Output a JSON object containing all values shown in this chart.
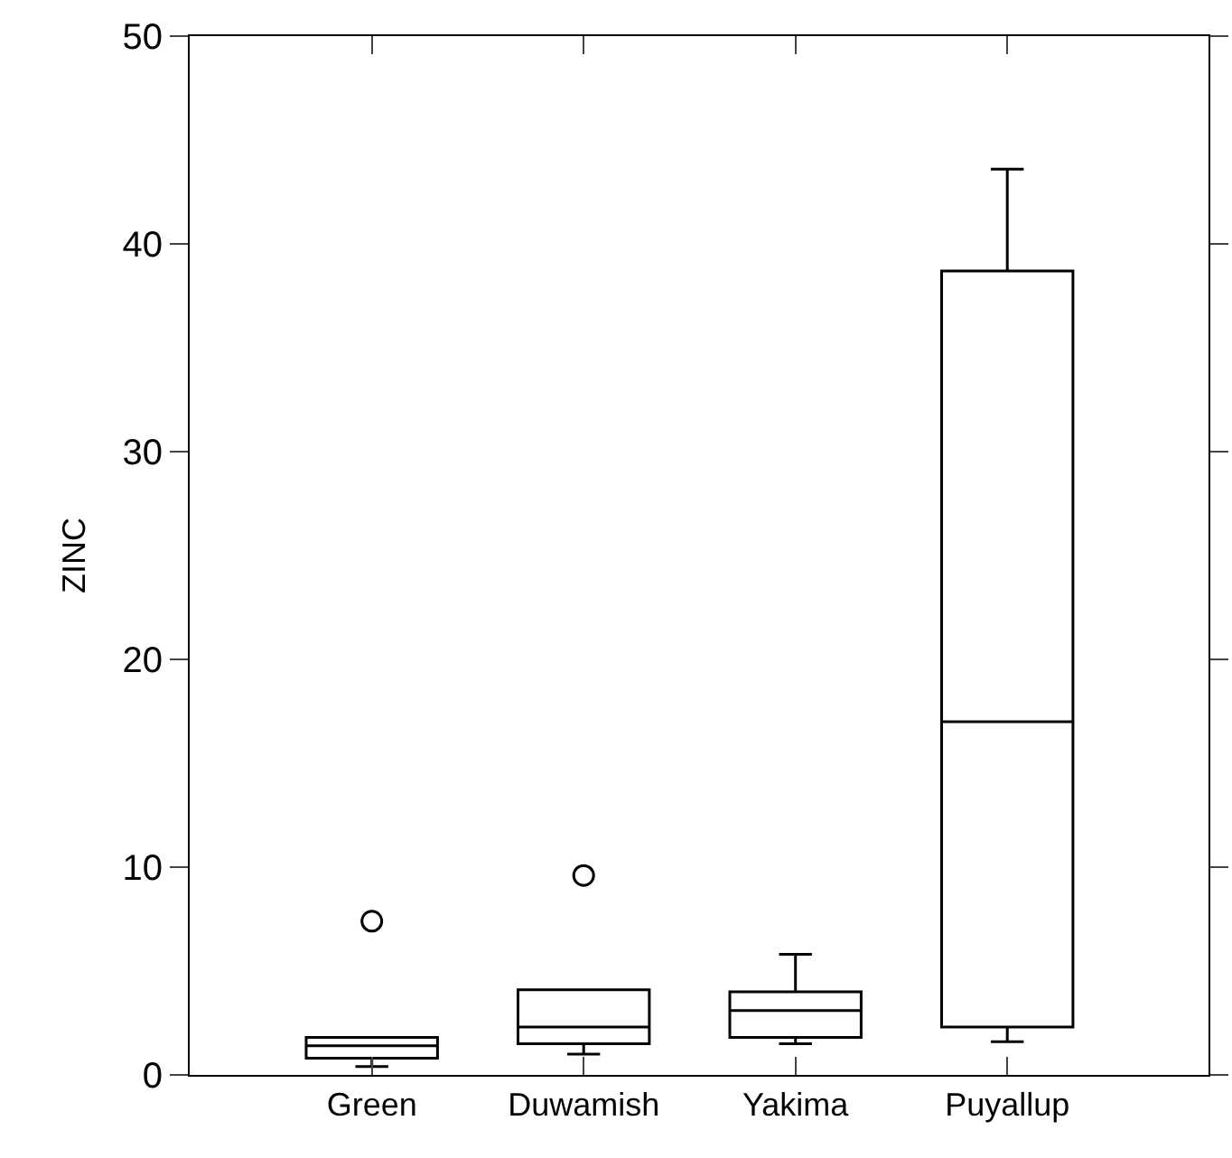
{
  "chart_data": {
    "type": "box",
    "ylabel": "ZINC",
    "categories": [
      "Green",
      "Duwamish",
      "Yakima",
      "Puyallup"
    ],
    "boxes": [
      {
        "low": 0.4,
        "q1": 0.8,
        "median": 1.4,
        "q3": 1.8,
        "high": 1.8,
        "outliers": [
          7.4
        ]
      },
      {
        "low": 1.0,
        "q1": 1.5,
        "median": 2.3,
        "q3": 4.1,
        "high": 4.1,
        "outliers": [
          9.6
        ]
      },
      {
        "low": 1.5,
        "q1": 1.8,
        "median": 3.1,
        "q3": 4.0,
        "high": 5.8
      },
      {
        "low": 1.6,
        "q1": 2.3,
        "median": 17.0,
        "q3": 38.7,
        "high": 43.6
      }
    ],
    "color": "#000000",
    "marker": "circle",
    "ylim": [
      0,
      50
    ],
    "yticks": [
      0,
      10,
      20,
      30,
      40,
      50
    ]
  }
}
